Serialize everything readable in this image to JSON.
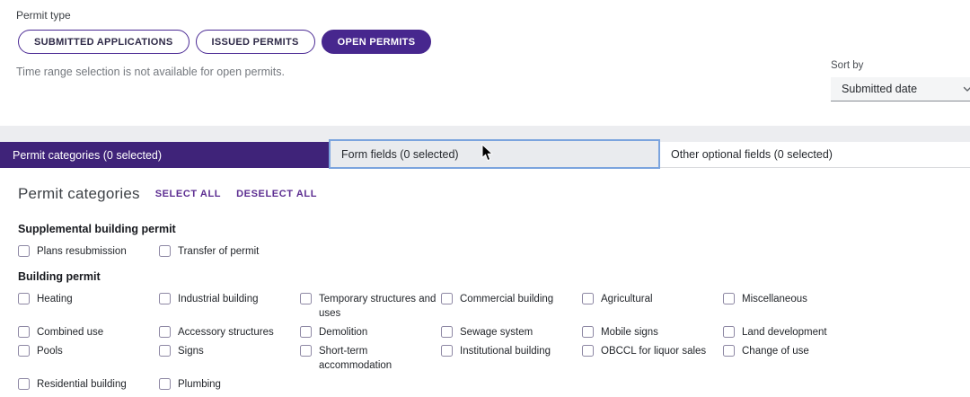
{
  "permit_type": {
    "label": "Permit type",
    "options": [
      {
        "label": "SUBMITTED APPLICATIONS",
        "selected": false
      },
      {
        "label": "ISSUED PERMITS",
        "selected": false
      },
      {
        "label": "OPEN PERMITS",
        "selected": true
      }
    ]
  },
  "notice": "Time range selection is not available for open permits.",
  "sort": {
    "label": "Sort by",
    "value": "Submitted date",
    "chevron_icon": "chevron-down"
  },
  "tabs": [
    {
      "label": "Permit categories (0 selected)",
      "state": "active"
    },
    {
      "label": "Form fields (0 selected)",
      "state": "hovered"
    },
    {
      "label": "Other optional fields (0 selected)",
      "state": "default"
    }
  ],
  "section": {
    "title": "Permit categories",
    "select_all_label": "SELECT ALL",
    "deselect_all_label": "DESELECT ALL"
  },
  "groups": [
    {
      "heading": "Supplemental building permit",
      "items": [
        "Plans resubmission",
        "Transfer of permit"
      ]
    },
    {
      "heading": "Building permit",
      "items": [
        "Heating",
        "Industrial building",
        "Temporary structures and uses",
        "Commercial building",
        "Agricultural",
        "Miscellaneous",
        "Combined use",
        "Accessory structures",
        "Demolition",
        "Sewage system",
        "Mobile signs",
        "Land development",
        "Pools",
        "Signs",
        "Short-term accommodation",
        "Institutional building",
        "OBCCL for liquor sales",
        "Change of use",
        "Residential building",
        "Plumbing"
      ]
    }
  ],
  "colors": {
    "accent_purple": "#47278e",
    "tab_active_purple": "#3f2379",
    "link_purple": "#5c2d91",
    "hover_outline_blue": "#7ba4de",
    "strip_gray": "#ecedf0",
    "checkbox_border": "#8e88a4"
  }
}
